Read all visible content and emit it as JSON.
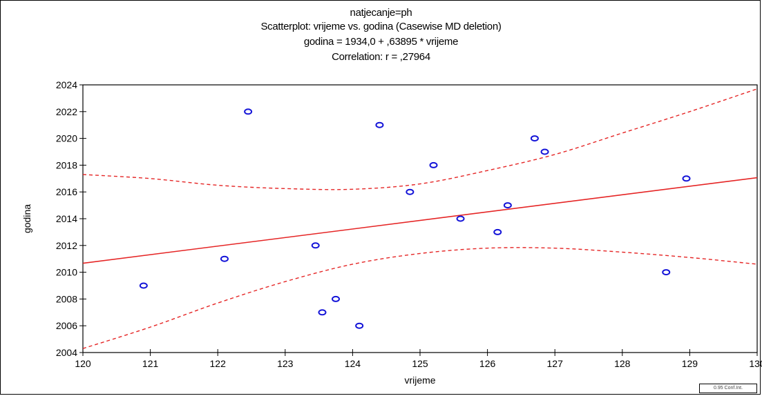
{
  "chart_data": {
    "type": "scatter",
    "title": "natjecanje=ph",
    "subtitle": "Scatterplot: vrijeme  vs. godina   (Casewise MD deletion)",
    "equation": "godina   = 1934,0 + ,63895 * vrijeme",
    "correlation": "Correlation: r = ,27964",
    "xlabel": "vrijeme",
    "ylabel": "godina",
    "xlim": [
      120,
      130
    ],
    "ylim": [
      2004,
      2024
    ],
    "x_ticks": [
      "120",
      "121",
      "122",
      "123",
      "124",
      "125",
      "126",
      "127",
      "128",
      "129",
      "130"
    ],
    "y_ticks": [
      "2004",
      "2006",
      "2008",
      "2010",
      "2012",
      "2014",
      "2016",
      "2018",
      "2020",
      "2022",
      "2024"
    ],
    "points": [
      {
        "x": 120.9,
        "y": 2009
      },
      {
        "x": 122.1,
        "y": 2011
      },
      {
        "x": 122.45,
        "y": 2022
      },
      {
        "x": 123.45,
        "y": 2012
      },
      {
        "x": 123.55,
        "y": 2007
      },
      {
        "x": 123.75,
        "y": 2008
      },
      {
        "x": 124.1,
        "y": 2006
      },
      {
        "x": 124.4,
        "y": 2021
      },
      {
        "x": 124.85,
        "y": 2016
      },
      {
        "x": 125.2,
        "y": 2018
      },
      {
        "x": 125.6,
        "y": 2014
      },
      {
        "x": 126.15,
        "y": 2013
      },
      {
        "x": 126.3,
        "y": 2015
      },
      {
        "x": 126.7,
        "y": 2020
      },
      {
        "x": 126.85,
        "y": 2019
      },
      {
        "x": 128.65,
        "y": 2010
      },
      {
        "x": 128.95,
        "y": 2017
      }
    ],
    "regression": {
      "intercept": 1934.0,
      "slope": 0.63895
    },
    "confidence_upper": [
      [
        120,
        2017.3
      ],
      [
        121,
        2017.0
      ],
      [
        122,
        2016.5
      ],
      [
        123,
        2016.25
      ],
      [
        124,
        2016.2
      ],
      [
        125,
        2016.6
      ],
      [
        126,
        2017.6
      ],
      [
        127,
        2018.8
      ],
      [
        128,
        2020.4
      ],
      [
        129,
        2022.0
      ],
      [
        130,
        2023.7
      ]
    ],
    "confidence_lower": [
      [
        120,
        2004.3
      ],
      [
        121,
        2005.9
      ],
      [
        122,
        2007.7
      ],
      [
        123,
        2009.3
      ],
      [
        124,
        2010.6
      ],
      [
        125,
        2011.4
      ],
      [
        126,
        2011.8
      ],
      [
        127,
        2011.8
      ],
      [
        128,
        2011.5
      ],
      [
        129,
        2011.1
      ],
      [
        130,
        2010.6
      ]
    ],
    "legend_label": "0.95 Conf.Int.",
    "colors": {
      "points": "#1414d8",
      "regression": "#e52424",
      "axis": "#000000"
    },
    "grid": false
  }
}
